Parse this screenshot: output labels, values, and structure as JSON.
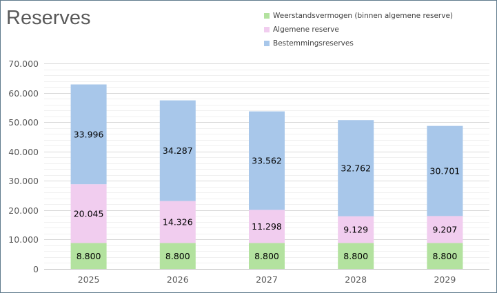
{
  "chart_data": {
    "type": "bar",
    "stacked": true,
    "title": "Reserves",
    "xlabel": "",
    "ylabel": "",
    "categories": [
      "2025",
      "2026",
      "2027",
      "2028",
      "2029"
    ],
    "ylim": [
      0,
      70000
    ],
    "yticks": [
      0,
      10000,
      20000,
      30000,
      40000,
      50000,
      60000,
      70000
    ],
    "ytick_labels": [
      "0",
      "10.000",
      "20.000",
      "30.000",
      "40.000",
      "50.000",
      "60.000",
      "70.000"
    ],
    "grid": true,
    "legend_position": "top-right",
    "series": [
      {
        "name": "Weerstandsvermogen (binnen algemene reserve)",
        "color": "#b3e29f",
        "values": [
          8800,
          8800,
          8800,
          8800,
          8800
        ],
        "labels": [
          "8.800",
          "8.800",
          "8.800",
          "8.800",
          "8.800"
        ]
      },
      {
        "name": "Algemene reserve",
        "color": "#f1cdef",
        "values": [
          20045,
          14326,
          11298,
          9129,
          9207
        ],
        "labels": [
          "20.045",
          "14.326",
          "11.298",
          "9.129",
          "9.207"
        ]
      },
      {
        "name": "Bestemmingsreserves",
        "color": "#a8c7ea",
        "values": [
          33996,
          34287,
          33562,
          32762,
          30701
        ],
        "labels": [
          "33.996",
          "34.287",
          "33.562",
          "32.762",
          "30.701"
        ]
      }
    ]
  }
}
